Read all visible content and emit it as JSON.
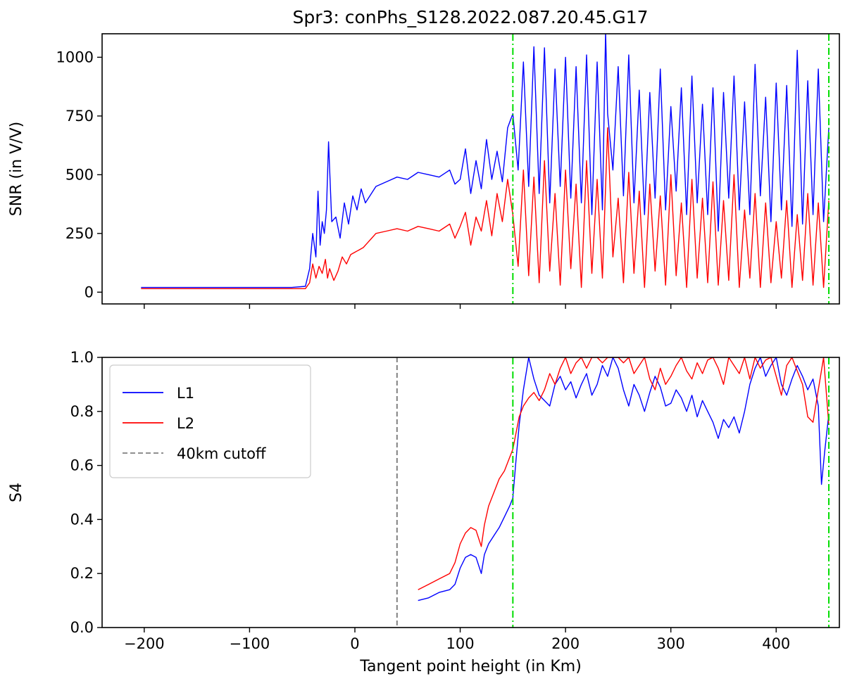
{
  "title": "Spr3: conPhs_S128.2022.087.20.45.G17",
  "chart_data": [
    {
      "type": "line",
      "panel": "top",
      "ylabel": "SNR (in V/V)",
      "xlabel": "",
      "xlim": [
        -240,
        460
      ],
      "ylim": [
        -50,
        1100
      ],
      "xticks": [
        -200,
        -100,
        0,
        100,
        200,
        300,
        400
      ],
      "yticks": [
        0,
        250,
        500,
        750,
        1000
      ],
      "ytick_labels": [
        "0",
        "250",
        "500",
        "750",
        "1000"
      ],
      "show_xtick_labels": false,
      "vlines": [
        {
          "x": 150,
          "color": "#00dd00",
          "style": "dashdot"
        },
        {
          "x": 450,
          "color": "#00dd00",
          "style": "dashdot"
        }
      ],
      "series": [
        {
          "color": "#0000ff",
          "x": [
            -203,
            -150,
            -100,
            -60,
            -47,
            -43,
            -40,
            -37,
            -35,
            -33,
            -31,
            -29,
            -27,
            -25,
            -22,
            -18,
            -14,
            -10,
            -6,
            -2,
            2,
            6,
            10,
            20,
            30,
            40,
            50,
            60,
            70,
            80,
            90,
            95,
            100,
            105,
            110,
            115,
            120,
            125,
            130,
            135,
            140,
            145,
            150,
            155,
            160,
            165,
            170,
            175,
            180,
            185,
            190,
            195,
            200,
            205,
            210,
            215,
            220,
            225,
            230,
            235,
            238,
            240,
            245,
            250,
            255,
            260,
            265,
            270,
            275,
            280,
            285,
            290,
            295,
            300,
            305,
            310,
            315,
            320,
            325,
            330,
            335,
            340,
            345,
            350,
            355,
            360,
            365,
            370,
            375,
            380,
            385,
            390,
            395,
            400,
            405,
            410,
            415,
            420,
            425,
            430,
            435,
            440,
            445,
            450
          ],
          "values": [
            20,
            20,
            20,
            20,
            25,
            100,
            250,
            150,
            430,
            200,
            300,
            250,
            350,
            640,
            300,
            320,
            230,
            380,
            290,
            410,
            350,
            440,
            380,
            450,
            470,
            490,
            480,
            510,
            500,
            490,
            520,
            460,
            480,
            610,
            420,
            560,
            440,
            650,
            480,
            600,
            470,
            700,
            760,
            520,
            980,
            450,
            1045,
            420,
            1040,
            380,
            950,
            450,
            1000,
            400,
            960,
            380,
            1010,
            330,
            980,
            350,
            1110,
            760,
            520,
            960,
            410,
            1010,
            380,
            860,
            330,
            850,
            400,
            950,
            350,
            790,
            430,
            870,
            330,
            920,
            380,
            800,
            330,
            870,
            260,
            850,
            400,
            920,
            350,
            810,
            330,
            970,
            410,
            830,
            300,
            890,
            350,
            880,
            280,
            1030,
            290,
            900,
            330,
            950,
            300,
            700
          ]
        },
        {
          "color": "#ff0000",
          "x": [
            -203,
            -150,
            -100,
            -60,
            -47,
            -43,
            -40,
            -37,
            -34,
            -31,
            -28,
            -26,
            -24,
            -20,
            -16,
            -12,
            -8,
            -4,
            0,
            4,
            8,
            12,
            16,
            20,
            30,
            40,
            50,
            60,
            70,
            80,
            90,
            95,
            100,
            105,
            110,
            115,
            120,
            125,
            130,
            135,
            140,
            145,
            150,
            155,
            160,
            165,
            170,
            175,
            180,
            185,
            190,
            195,
            200,
            205,
            210,
            215,
            220,
            225,
            230,
            235,
            240,
            245,
            250,
            255,
            260,
            265,
            270,
            275,
            280,
            285,
            290,
            295,
            300,
            305,
            310,
            315,
            320,
            325,
            330,
            335,
            340,
            345,
            350,
            355,
            360,
            365,
            370,
            375,
            380,
            385,
            390,
            395,
            400,
            405,
            410,
            415,
            420,
            425,
            430,
            435,
            440,
            445,
            450
          ],
          "values": [
            15,
            15,
            15,
            15,
            15,
            40,
            120,
            60,
            110,
            80,
            140,
            60,
            100,
            50,
            90,
            150,
            120,
            160,
            170,
            180,
            190,
            210,
            230,
            250,
            260,
            270,
            260,
            280,
            270,
            260,
            290,
            230,
            280,
            340,
            200,
            320,
            260,
            390,
            240,
            420,
            300,
            480,
            330,
            110,
            520,
            70,
            490,
            40,
            560,
            90,
            420,
            30,
            520,
            100,
            460,
            20,
            560,
            80,
            480,
            60,
            700,
            150,
            400,
            40,
            510,
            80,
            430,
            20,
            460,
            90,
            410,
            30,
            500,
            70,
            380,
            20,
            480,
            60,
            400,
            40,
            470,
            30,
            390,
            50,
            500,
            20,
            350,
            60,
            420,
            20,
            380,
            40,
            300,
            60,
            390,
            20,
            330,
            50,
            420,
            30,
            380,
            20,
            390
          ]
        }
      ]
    },
    {
      "type": "line",
      "panel": "bottom",
      "ylabel": "S4",
      "xlabel": "Tangent point height (in Km)",
      "xlim": [
        -240,
        460
      ],
      "ylim": [
        0,
        1
      ],
      "xticks": [
        -200,
        -100,
        0,
        100,
        200,
        300,
        400
      ],
      "xtick_labels": [
        "−200",
        "−100",
        "0",
        "100",
        "200",
        "300",
        "400"
      ],
      "yticks": [
        0,
        0.2,
        0.4,
        0.6,
        0.8,
        1.0
      ],
      "ytick_labels": [
        "0.0",
        "0.2",
        "0.4",
        "0.6",
        "0.8",
        "1.0"
      ],
      "legend": {
        "position": "top-left",
        "entries": [
          {
            "label": "L1",
            "color": "#0000ff",
            "style": "solid"
          },
          {
            "label": "L2",
            "color": "#ff0000",
            "style": "solid"
          },
          {
            "label": "40km cutoff",
            "color": "#808080",
            "style": "dashed"
          }
        ]
      },
      "vlines": [
        {
          "x": 40,
          "color": "#808080",
          "style": "dashed"
        },
        {
          "x": 150,
          "color": "#00dd00",
          "style": "dashdot"
        },
        {
          "x": 450,
          "color": "#00dd00",
          "style": "dashdot"
        }
      ],
      "series": [
        {
          "name": "L1",
          "color": "#0000ff",
          "x": [
            60,
            70,
            80,
            90,
            95,
            100,
            105,
            110,
            115,
            120,
            123,
            127,
            132,
            137,
            142,
            147,
            150,
            153,
            156,
            160,
            165,
            170,
            175,
            180,
            185,
            190,
            195,
            200,
            205,
            210,
            215,
            220,
            225,
            230,
            235,
            240,
            245,
            250,
            255,
            260,
            265,
            270,
            275,
            280,
            285,
            290,
            295,
            300,
            305,
            310,
            315,
            320,
            325,
            330,
            335,
            340,
            345,
            350,
            355,
            360,
            365,
            370,
            375,
            380,
            385,
            390,
            395,
            400,
            405,
            410,
            415,
            420,
            425,
            430,
            435,
            440,
            443,
            446,
            450
          ],
          "values": [
            0.1,
            0.11,
            0.13,
            0.14,
            0.16,
            0.22,
            0.26,
            0.27,
            0.26,
            0.2,
            0.27,
            0.31,
            0.34,
            0.37,
            0.41,
            0.45,
            0.48,
            0.62,
            0.75,
            0.88,
            1.0,
            0.92,
            0.86,
            0.84,
            0.82,
            0.9,
            0.93,
            0.88,
            0.91,
            0.85,
            0.9,
            0.94,
            0.86,
            0.9,
            0.97,
            0.93,
            1.0,
            0.96,
            0.88,
            0.82,
            0.9,
            0.86,
            0.8,
            0.87,
            0.93,
            0.89,
            0.82,
            0.83,
            0.88,
            0.85,
            0.8,
            0.86,
            0.78,
            0.84,
            0.8,
            0.76,
            0.7,
            0.77,
            0.74,
            0.78,
            0.72,
            0.8,
            0.9,
            0.96,
            1.0,
            0.93,
            0.97,
            1.0,
            0.9,
            0.86,
            0.92,
            0.97,
            0.93,
            0.88,
            0.92,
            0.82,
            0.53,
            0.65,
            0.79
          ]
        },
        {
          "name": "L2",
          "color": "#ff0000",
          "x": [
            60,
            70,
            80,
            90,
            95,
            100,
            105,
            110,
            115,
            120,
            123,
            127,
            132,
            137,
            142,
            147,
            150,
            153,
            156,
            160,
            165,
            170,
            175,
            180,
            185,
            190,
            195,
            200,
            205,
            210,
            215,
            220,
            225,
            230,
            235,
            240,
            245,
            250,
            255,
            260,
            265,
            270,
            275,
            280,
            285,
            290,
            295,
            300,
            305,
            310,
            315,
            320,
            325,
            330,
            335,
            340,
            345,
            350,
            355,
            360,
            365,
            370,
            375,
            380,
            385,
            390,
            395,
            400,
            405,
            410,
            415,
            420,
            425,
            430,
            435,
            440,
            445,
            450
          ],
          "values": [
            0.14,
            0.16,
            0.18,
            0.2,
            0.24,
            0.31,
            0.35,
            0.37,
            0.36,
            0.3,
            0.38,
            0.45,
            0.5,
            0.55,
            0.58,
            0.63,
            0.66,
            0.72,
            0.78,
            0.82,
            0.85,
            0.87,
            0.84,
            0.88,
            0.94,
            0.9,
            0.96,
            1.0,
            0.94,
            0.98,
            1.0,
            0.96,
            1.0,
            1.0,
            0.98,
            1.0,
            1.0,
            1.0,
            0.98,
            1.0,
            0.94,
            0.97,
            1.0,
            0.92,
            0.88,
            0.96,
            0.9,
            0.93,
            0.97,
            1.0,
            0.95,
            0.92,
            0.98,
            0.94,
            0.99,
            1.0,
            0.96,
            0.9,
            1.0,
            0.97,
            0.94,
            1.0,
            0.92,
            1.0,
            0.96,
            0.99,
            1.0,
            0.93,
            0.86,
            0.97,
            1.0,
            0.95,
            0.9,
            0.78,
            0.76,
            0.88,
            1.0,
            0.75
          ]
        }
      ]
    }
  ]
}
